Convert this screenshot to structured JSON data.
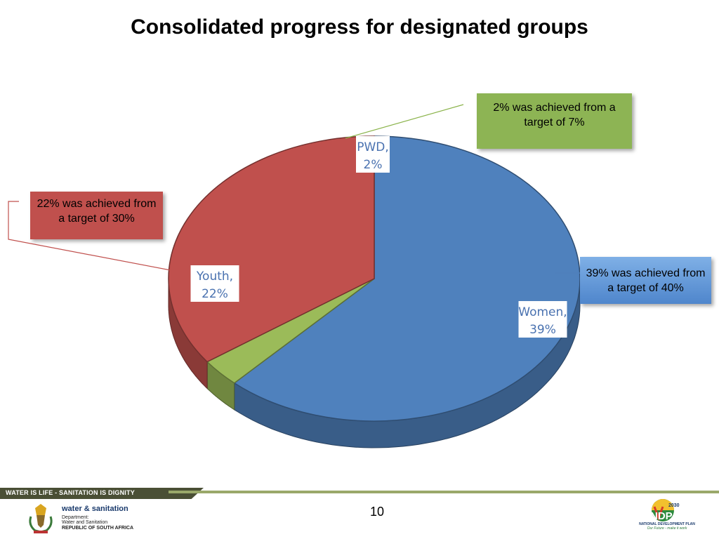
{
  "slide": {
    "title": "Consolidated progress for designated groups",
    "page_number": "10"
  },
  "chart_data": {
    "type": "pie",
    "title": "",
    "slices": [
      {
        "label": "Women",
        "value": 39,
        "data_label": "Women,\n39%",
        "color": "#4f81bd"
      },
      {
        "label": "PWD",
        "value": 2,
        "data_label": "PWD,\n2%",
        "color": "#9bbb59"
      },
      {
        "label": "Youth",
        "value": 22,
        "data_label": "Youth,\n22%",
        "color": "#c0504d"
      }
    ]
  },
  "callouts": {
    "pwd": "2% was achieved from a target of 7%",
    "youth": "22% was achieved from a target of 30%",
    "women": "39% was achieved from a target of 40%"
  },
  "footer": {
    "slogan": "WATER IS LIFE - SANITATION IS DIGNITY",
    "brand": "water & sanitation",
    "department_line1": "Department:",
    "department_line2": "Water and Sanitation",
    "department_line3": "REPUBLIC OF SOUTH AFRICA",
    "ndp_year": "2030",
    "ndp_abbrev": "NDP",
    "ndp_name": "NATIONAL DEVELOPMENT PLAN",
    "ndp_tagline": "Our Future - make it work"
  },
  "colors": {
    "women": "#4f81bd",
    "pwd": "#9bbb59",
    "youth": "#c0504d",
    "footer_dark": "#4a4f35",
    "footer_line": "#9aa86a"
  }
}
